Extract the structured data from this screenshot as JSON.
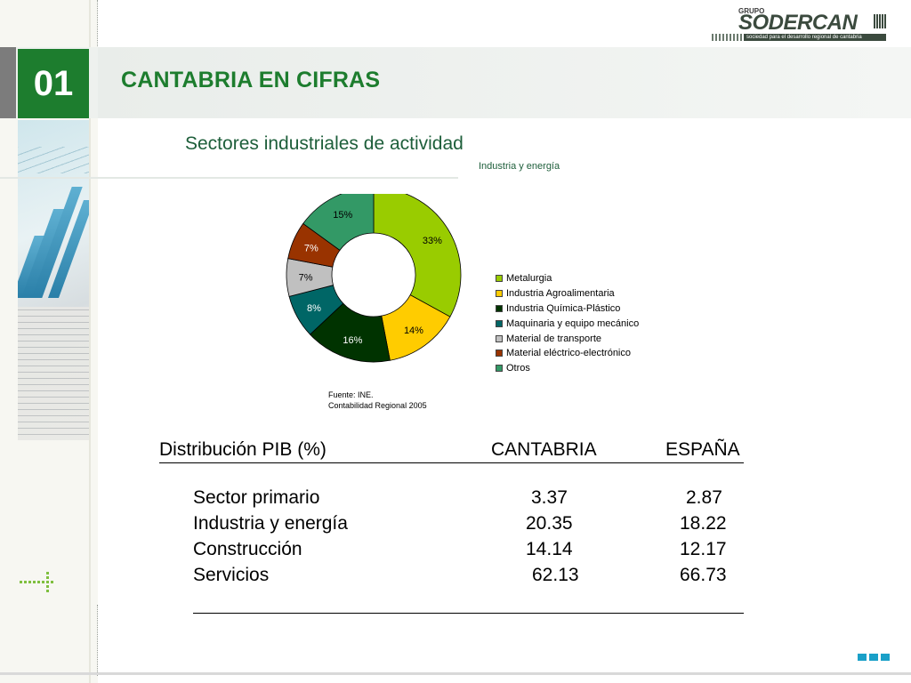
{
  "header": {
    "section_number": "01",
    "title": "CANTABRIA EN CIFRAS"
  },
  "logo": {
    "grupo": "GRUPO",
    "brand": "SODERCAN",
    "tagline": "sociedad para el desarrollo regional de cantabria"
  },
  "content": {
    "subtitle": "Sectores industriales de actividad",
    "chart_heading": "Industria y energía",
    "source_line1": "Fuente: INE.",
    "source_line2": "Contabilidad Regional 2005"
  },
  "chart_data": {
    "type": "pie",
    "title": "Industria y energía",
    "categories": [
      "Metalurgia",
      "Industria Agroalimentaria",
      "Industria Química-Plástico",
      "Maquinaria y equipo mecánico",
      "Material de transporte",
      "Material eléctrico-electrónico",
      "Otros"
    ],
    "values": [
      33,
      14,
      16,
      8,
      7,
      7,
      15
    ],
    "labels": [
      "33%",
      "14%",
      "16%",
      "8%",
      "7%",
      "7%",
      "15%"
    ],
    "colors": [
      "#99cc00",
      "#ffcc00",
      "#003300",
      "#006666",
      "#c0c0c0",
      "#993300",
      "#339966"
    ],
    "label_colors": [
      "#000000",
      "#000000",
      "#ffffff",
      "#ffffff",
      "#000000",
      "#ffffff",
      "#000000"
    ],
    "legend_position": "right",
    "donut": true
  },
  "table": {
    "header": {
      "label": "Distribución PIB (%)",
      "col1": "CANTABRIA",
      "col2": "ESPAÑA"
    },
    "rows": [
      {
        "label": "Sector primario",
        "cantabria": "3.37",
        "espana": "2.87"
      },
      {
        "label": "Industria y energía",
        "cantabria": "20.35",
        "espana": "18.22"
      },
      {
        "label": "Construcción",
        "cantabria": "14.14",
        "espana": "12.17"
      },
      {
        "label": "Servicios",
        "cantabria": "62.13",
        "espana": "66.73"
      }
    ]
  }
}
